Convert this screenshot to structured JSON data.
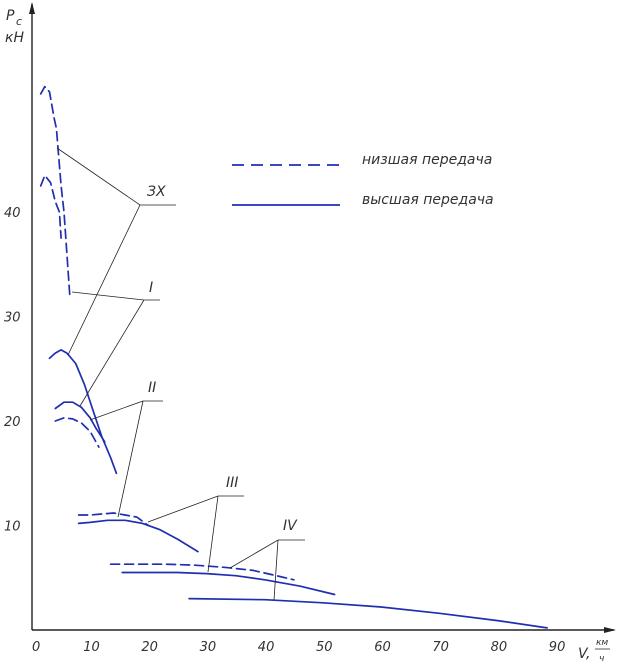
{
  "chart_data": {
    "type": "line",
    "title": "",
    "ylabel": "P_c кН",
    "xlabel": "V, км/ч",
    "y_axis_title": {
      "symbol": "P",
      "subscript": "c",
      "unit": "кН"
    },
    "x_axis_title": {
      "symbol": "V,",
      "unit_num": "км",
      "unit_den": "ч"
    },
    "xlim": [
      0,
      97
    ],
    "ylim": [
      0,
      60
    ],
    "x_ticks": [
      0,
      10,
      20,
      30,
      40,
      50,
      60,
      70,
      80,
      90
    ],
    "y_ticks": [
      10,
      20,
      30,
      40
    ],
    "legend": [
      {
        "name": "низшая передача",
        "style": "dashed"
      },
      {
        "name": "высшая передача",
        "style": "solid"
      }
    ],
    "gear_labels": [
      "ЗХ",
      "I",
      "II",
      "III",
      "IV"
    ],
    "color": "#1f2fb0",
    "series": [
      {
        "gear": "ЗХ",
        "style": "dashed",
        "x": [
          1.5,
          2.2,
          3.0,
          3.8,
          4.2,
          5.0,
          5.5,
          6.0,
          6.5
        ],
        "y": [
          51.3,
          52.0,
          51.5,
          49.0,
          48.0,
          42.5,
          40.0,
          36.0,
          32.0
        ]
      },
      {
        "gear": "ЗХ",
        "style": "dashed",
        "x": [
          1.5,
          2.2,
          3.2,
          4.0,
          4.7,
          5.0
        ],
        "y": [
          42.5,
          43.5,
          42.8,
          41.0,
          40.0,
          37.5
        ]
      },
      {
        "gear": "I",
        "style": "solid",
        "x": [
          3.0,
          4.0,
          5.0,
          6.0,
          7.5,
          9.0,
          10.5,
          12.0,
          13.5,
          14.5
        ],
        "y": [
          26.0,
          26.5,
          26.8,
          26.5,
          25.5,
          23.5,
          21.0,
          18.5,
          16.5,
          15.0
        ]
      },
      {
        "gear": "II",
        "style": "solid",
        "x": [
          4.0,
          5.5,
          7.0,
          8.5,
          10.0,
          11.0,
          12.5
        ],
        "y": [
          21.2,
          21.8,
          21.8,
          21.3,
          20.3,
          19.3,
          18.0
        ]
      },
      {
        "gear": "II",
        "style": "dashed",
        "x": [
          4.0,
          5.5,
          7.0,
          8.5,
          10.0,
          11.5
        ],
        "y": [
          20.0,
          20.3,
          20.2,
          19.8,
          19.0,
          17.5
        ]
      },
      {
        "gear": "III",
        "style": "dashed",
        "x": [
          8.0,
          10.0,
          12.0,
          14.0,
          16.0,
          18.0,
          20.0
        ],
        "y": [
          11.0,
          11.0,
          11.1,
          11.2,
          11.0,
          10.8,
          10.0
        ]
      },
      {
        "gear": "III",
        "style": "solid",
        "x": [
          8.0,
          10.0,
          13.0,
          16.0,
          19.0,
          22.0,
          25.0,
          28.5
        ],
        "y": [
          10.2,
          10.3,
          10.5,
          10.5,
          10.2,
          9.6,
          8.7,
          7.5
        ]
      },
      {
        "gear": "IV",
        "style": "dashed",
        "x": [
          13.5,
          18.0,
          23.0,
          28.0,
          33.0,
          38.0,
          42.0,
          45.0
        ],
        "y": [
          6.3,
          6.3,
          6.3,
          6.2,
          6.0,
          5.7,
          5.2,
          4.8
        ]
      },
      {
        "gear": "IV",
        "style": "solid",
        "x": [
          15.5,
          20.0,
          25.0,
          30.0,
          35.0,
          40.0,
          46.0,
          52.0
        ],
        "y": [
          5.5,
          5.5,
          5.5,
          5.4,
          5.2,
          4.8,
          4.2,
          3.4
        ]
      },
      {
        "gear": "IV",
        "style": "solid",
        "x": [
          27.0,
          40.0,
          50.0,
          60.0,
          70.0,
          80.0,
          88.5
        ],
        "y": [
          3.0,
          2.9,
          2.6,
          2.2,
          1.6,
          0.9,
          0.2
        ]
      }
    ]
  }
}
